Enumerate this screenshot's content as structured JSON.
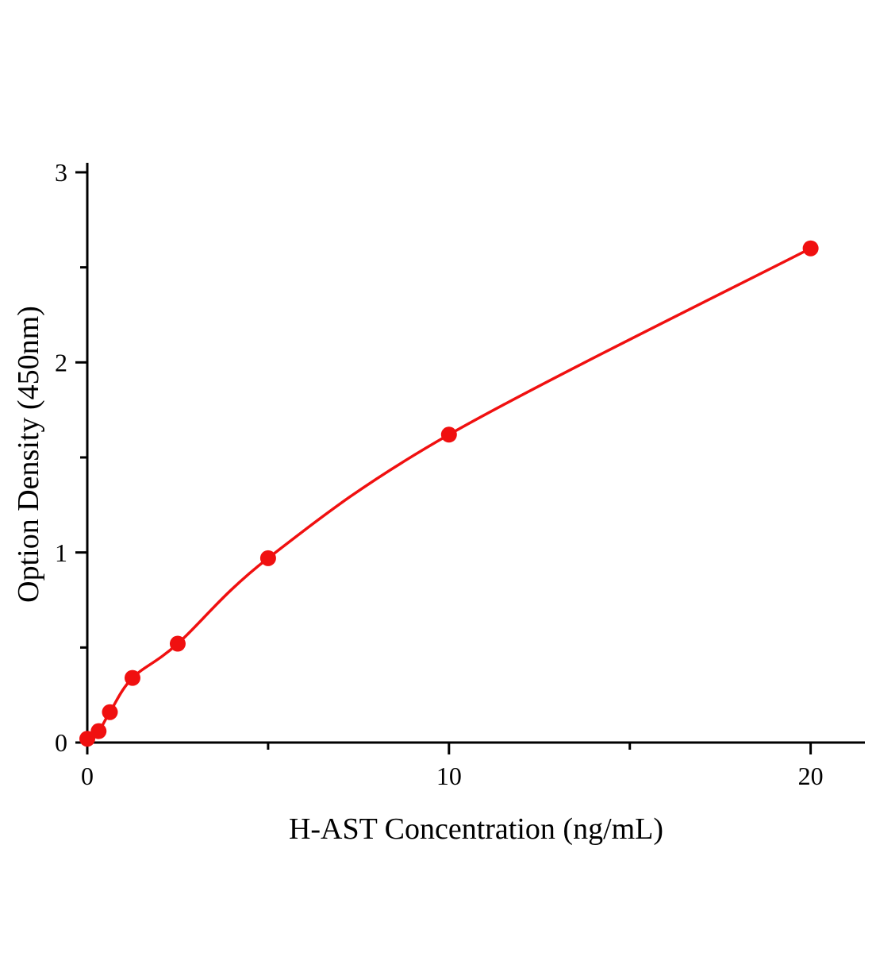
{
  "chart_data": {
    "type": "line",
    "title": "",
    "xlabel": "H-AST Concentration (ng/mL)",
    "ylabel": "Option Density (450nm)",
    "x": [
      0,
      0.313,
      0.625,
      1.25,
      2.5,
      5,
      10,
      20
    ],
    "y": [
      0.02,
      0.06,
      0.16,
      0.34,
      0.52,
      0.97,
      1.62,
      2.6
    ],
    "xlim": [
      0,
      21.5
    ],
    "ylim": [
      0,
      3.05
    ],
    "x_major_ticks": [
      0,
      10,
      20
    ],
    "x_major_tick_labels": [
      "0",
      "10",
      "20"
    ],
    "x_minor_ticks": [
      5,
      15
    ],
    "y_major_ticks": [
      0,
      1,
      2,
      3
    ],
    "y_major_tick_labels": [
      "0",
      "1",
      "2",
      "3"
    ],
    "y_minor_ticks": [
      0.5,
      1.5,
      2.5
    ],
    "grid": "off",
    "legend": "none",
    "line_color": "#f01010",
    "marker_color": "#f01010",
    "axis_color": "#000000",
    "marker": "circle",
    "marker_radius": 10,
    "line_width": 3.5
  }
}
